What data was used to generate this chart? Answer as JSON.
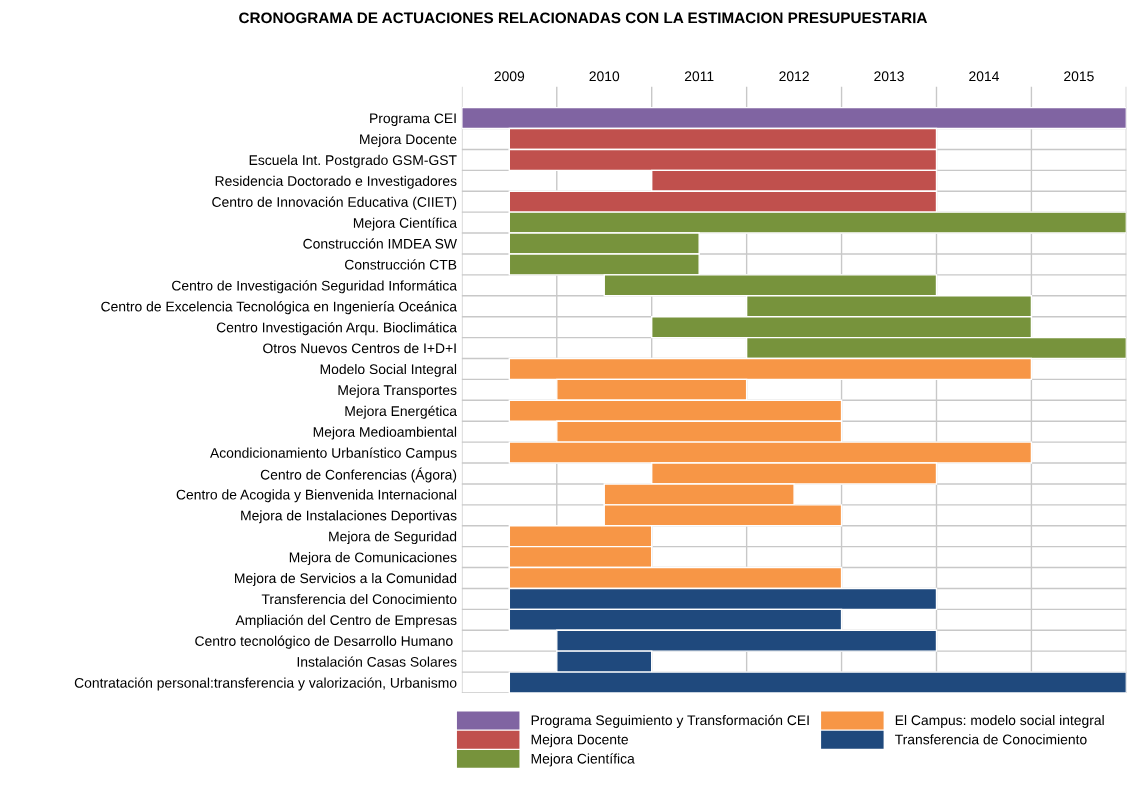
{
  "chart_data": {
    "type": "bar",
    "orientation": "horizontal",
    "title": "CRONOGRAMA DE ACTUACIONES RELACIONADAS CON LA ESTIMACION PRESUPUESTARIA",
    "categories": [
      "Programa CEI",
      "Mejora Docente",
      "Escuela Int. Postgrado GSM-GST",
      "Residencia Doctorado e Investigadores",
      "Centro de Innovación Educativa (CIIET)",
      "Mejora Científica",
      "Construcción IMDEA SW",
      "Construcción CTB",
      "Centro de Investigación Seguridad Informática",
      "Centro de Excelencia Tecnológica en Ingeniería Oceánica",
      "Centro Investigación Arqu. Bioclimática",
      "Otros Nuevos Centros de I+D+I",
      "Modelo Social Integral",
      "Mejora Transportes",
      "Mejora Energética",
      "Mejora Medioambiental",
      "Acondicionamiento Urbanístico Campus",
      "Centro de Conferencias (Ágora)",
      "Centro de Acogida y Bienvenida Internacional",
      "Mejora de Instalaciones Deportivas",
      "Mejora de Seguridad",
      "Mejora de Comunicaciones",
      "Mejora de Servicios a la Comunidad",
      "Transferencia del Conocimiento",
      "Ampliación del Centro de Empresas",
      "Centro tecnológico de Desarrollo Humano ",
      "Instalación Casas Solares",
      "Contratación personal:transferencia y valorización, Urbanismo"
    ],
    "series": [
      {
        "name": "Programa Seguimiento y Transformación CEI",
        "color": "#8064a2",
        "base": [
          2009,
          null,
          null,
          null,
          null,
          null,
          null,
          null,
          null,
          null,
          null,
          null,
          null,
          null,
          null,
          null,
          null,
          null,
          null,
          null,
          null,
          null,
          null,
          null,
          null,
          null,
          null,
          null
        ],
        "values": [
          7,
          null,
          null,
          null,
          null,
          null,
          null,
          null,
          null,
          null,
          null,
          null,
          null,
          null,
          null,
          null,
          null,
          null,
          null,
          null,
          null,
          null,
          null,
          null,
          null,
          null,
          null,
          null
        ]
      },
      {
        "name": "Mejora Docente",
        "color": "#c0504d",
        "base": [
          null,
          2009.5,
          2009.5,
          2011,
          2009.5,
          null,
          null,
          null,
          null,
          null,
          null,
          null,
          null,
          null,
          null,
          null,
          null,
          null,
          null,
          null,
          null,
          null,
          null,
          null,
          null,
          null,
          null,
          null
        ],
        "values": [
          null,
          4.5,
          4.5,
          3,
          4.5,
          null,
          null,
          null,
          null,
          null,
          null,
          null,
          null,
          null,
          null,
          null,
          null,
          null,
          null,
          null,
          null,
          null,
          null,
          null,
          null,
          null,
          null,
          null
        ]
      },
      {
        "name": "Mejora Científica",
        "color": "#77933c",
        "base": [
          null,
          null,
          null,
          null,
          null,
          2009.5,
          2009.5,
          2009.5,
          2010.5,
          2012,
          2011,
          2012,
          null,
          null,
          null,
          null,
          null,
          null,
          null,
          null,
          null,
          null,
          null,
          null,
          null,
          null,
          null,
          null
        ],
        "values": [
          null,
          null,
          null,
          null,
          null,
          6.5,
          2,
          2,
          3.5,
          3,
          4,
          4,
          null,
          null,
          null,
          null,
          null,
          null,
          null,
          null,
          null,
          null,
          null,
          null,
          null,
          null,
          null,
          null
        ]
      },
      {
        "name": "El Campus: modelo social integral",
        "color": "#f79646",
        "base": [
          null,
          null,
          null,
          null,
          null,
          null,
          null,
          null,
          null,
          null,
          null,
          null,
          2009.5,
          2010,
          2009.5,
          2010,
          2009.5,
          2011,
          2010.5,
          2010.5,
          2009.5,
          2009.5,
          2009.5,
          null,
          null,
          null,
          null,
          null
        ],
        "values": [
          null,
          null,
          null,
          null,
          null,
          null,
          null,
          null,
          null,
          null,
          null,
          null,
          5.5,
          2,
          3.5,
          3,
          5.5,
          3,
          2,
          2.5,
          1.5,
          1.5,
          3.5,
          null,
          null,
          null,
          null,
          null
        ]
      },
      {
        "name": "Transferencia de Conocimiento",
        "color": "#1f497d",
        "base": [
          null,
          null,
          null,
          null,
          null,
          null,
          null,
          null,
          null,
          null,
          null,
          null,
          null,
          null,
          null,
          null,
          null,
          null,
          null,
          null,
          null,
          null,
          null,
          2009.5,
          2009.5,
          2010,
          2010,
          2009.5
        ],
        "values": [
          null,
          null,
          null,
          null,
          null,
          null,
          null,
          null,
          null,
          null,
          null,
          null,
          null,
          null,
          null,
          null,
          null,
          null,
          null,
          null,
          null,
          null,
          null,
          4.5,
          3.5,
          4,
          1,
          6.5
        ]
      }
    ],
    "xlim": [
      2009,
      2016
    ],
    "xticks": [
      {
        "value": 2009,
        "label": null
      },
      {
        "value": 2009.5,
        "label": "2009"
      },
      {
        "value": 2010,
        "label": null
      },
      {
        "value": 2010.5,
        "label": "2010"
      },
      {
        "value": 2011,
        "label": null
      },
      {
        "value": 2011.5,
        "label": "2011"
      },
      {
        "value": 2012,
        "label": null
      },
      {
        "value": 2012.5,
        "label": "2012"
      },
      {
        "value": 2013,
        "label": null
      },
      {
        "value": 2013.5,
        "label": "2013"
      },
      {
        "value": 2014,
        "label": null
      },
      {
        "value": 2014.5,
        "label": "2014"
      },
      {
        "value": 2015,
        "label": null
      },
      {
        "value": 2015.5,
        "label": "2015"
      },
      {
        "value": 2016,
        "label": null
      }
    ],
    "grid": true,
    "legend": "bottom"
  }
}
